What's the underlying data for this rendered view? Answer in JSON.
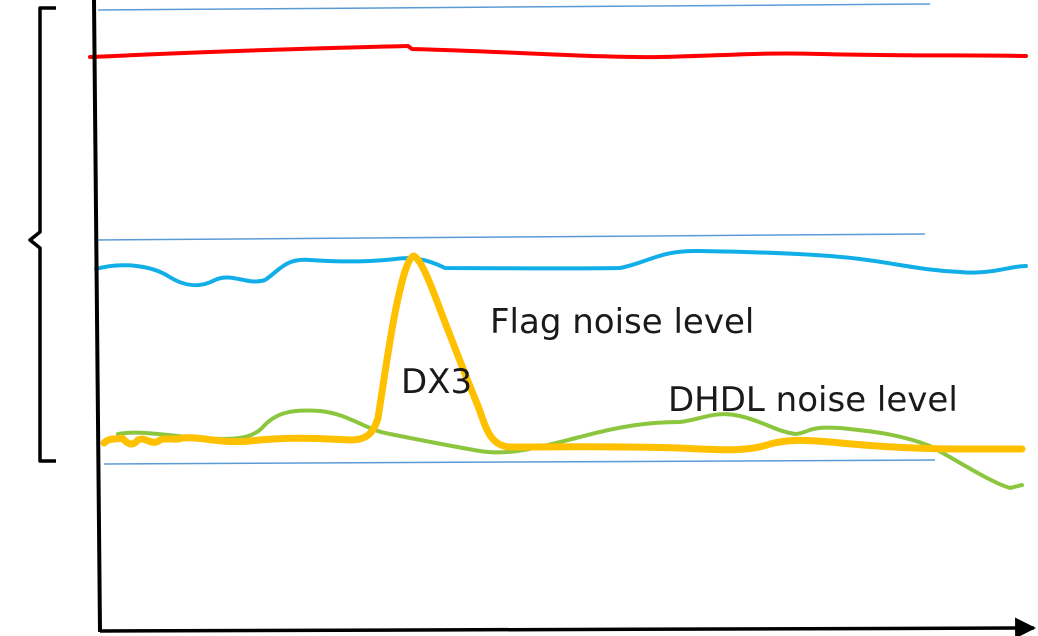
{
  "labels": {
    "flag_noise": "Flag noise level",
    "dx3": "DX3",
    "dhdl_noise": "DHDL noise level"
  },
  "colors": {
    "red_line": "#ff0000",
    "blue_line": "#12aee8",
    "orange_line": "#ffc000",
    "green_line": "#8cc63f",
    "reference_line": "#5b9bd5",
    "axis": "#000000"
  }
}
